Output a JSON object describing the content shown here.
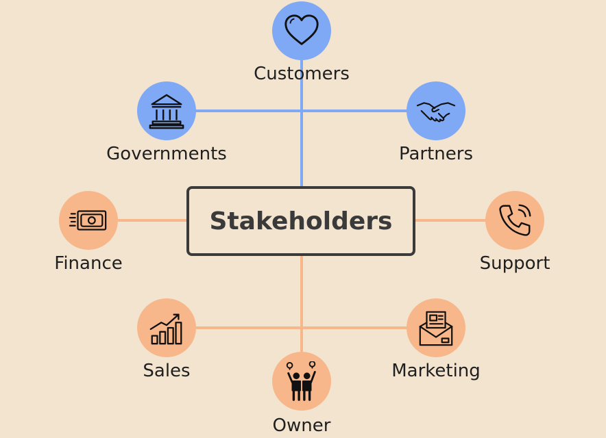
{
  "diagram": {
    "center": {
      "label": "Stakeholders"
    },
    "colors": {
      "background": "#f2e4cf",
      "blue_group": "#7fa8f5",
      "orange_group": "#f8b78b",
      "center_border": "#3a3a3a",
      "icon_stroke": "#111111"
    },
    "nodes": [
      {
        "id": "customers",
        "label": "Customers",
        "icon": "heart-icon",
        "group": "blue"
      },
      {
        "id": "governments",
        "label": "Governments",
        "icon": "bank-building-icon",
        "group": "blue"
      },
      {
        "id": "partners",
        "label": "Partners",
        "icon": "handshake-icon",
        "group": "blue"
      },
      {
        "id": "finance",
        "label": "Finance",
        "icon": "money-bill-icon",
        "group": "orange"
      },
      {
        "id": "support",
        "label": "Support",
        "icon": "phone-ringing-icon",
        "group": "orange"
      },
      {
        "id": "sales",
        "label": "Sales",
        "icon": "bar-chart-growth-icon",
        "group": "orange"
      },
      {
        "id": "marketing",
        "label": "Marketing",
        "icon": "envelope-letter-icon",
        "group": "orange"
      },
      {
        "id": "owner",
        "label": "Owner",
        "icon": "people-ideas-icon",
        "group": "orange"
      }
    ]
  }
}
